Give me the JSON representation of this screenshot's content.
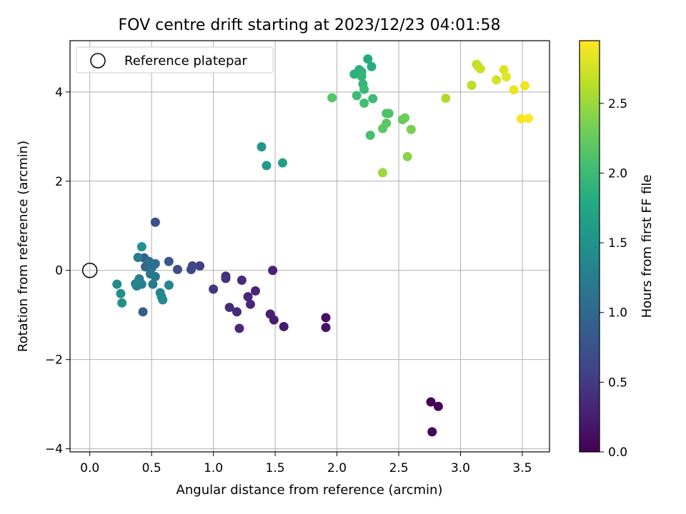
{
  "chart_data": {
    "type": "scatter",
    "title": "FOV centre drift starting at 2023/12/23 04:01:58",
    "xlabel": "Angular distance from reference (arcmin)",
    "ylabel": "Rotation from reference (arcmin)",
    "xlim": [
      -0.16,
      3.72
    ],
    "ylim": [
      -4.07,
      5.15
    ],
    "xticks": [
      0.0,
      0.5,
      1.0,
      1.5,
      2.0,
      2.5,
      3.0,
      3.5
    ],
    "xtick_labels": [
      "0.0",
      "0.5",
      "1.0",
      "1.5",
      "2.0",
      "2.5",
      "3.0",
      "3.5"
    ],
    "yticks": [
      -4,
      -2,
      0,
      2,
      4
    ],
    "ytick_labels": [
      "−4",
      "−2",
      "0",
      "2",
      "4"
    ],
    "grid": true,
    "legend": {
      "position": "top-left",
      "entries": [
        "Reference platepar"
      ]
    },
    "reference_point": {
      "x": 0.0,
      "y": 0.0,
      "label": "Reference platepar"
    },
    "colorbar": {
      "label": "Hours from first FF file",
      "colormap": "viridis",
      "range": [
        0.0,
        2.95
      ],
      "ticks": [
        0.0,
        0.5,
        1.0,
        1.5,
        2.0,
        2.5
      ],
      "tick_labels": [
        "0.0",
        "0.5",
        "1.0",
        "1.5",
        "2.0",
        "2.5"
      ]
    },
    "points": [
      {
        "x": 2.76,
        "y": -2.95,
        "c": 0.02
      },
      {
        "x": 2.82,
        "y": -3.05,
        "c": 0.03
      },
      {
        "x": 2.77,
        "y": -3.62,
        "c": 0.04
      },
      {
        "x": 1.91,
        "y": -1.06,
        "c": 0.12
      },
      {
        "x": 1.91,
        "y": -1.28,
        "c": 0.14
      },
      {
        "x": 1.57,
        "y": -1.26,
        "c": 0.22
      },
      {
        "x": 1.49,
        "y": -1.11,
        "c": 0.24
      },
      {
        "x": 1.46,
        "y": -0.98,
        "c": 0.26
      },
      {
        "x": 1.48,
        "y": 0.0,
        "c": 0.28
      },
      {
        "x": 1.34,
        "y": -0.46,
        "c": 0.3
      },
      {
        "x": 1.3,
        "y": -0.76,
        "c": 0.32
      },
      {
        "x": 1.28,
        "y": -0.59,
        "c": 0.33
      },
      {
        "x": 1.21,
        "y": -1.3,
        "c": 0.34
      },
      {
        "x": 1.19,
        "y": -0.93,
        "c": 0.36
      },
      {
        "x": 1.23,
        "y": -0.22,
        "c": 0.37
      },
      {
        "x": 1.13,
        "y": -0.83,
        "c": 0.38
      },
      {
        "x": 1.1,
        "y": -0.13,
        "c": 0.4
      },
      {
        "x": 1.1,
        "y": -0.18,
        "c": 0.42
      },
      {
        "x": 1.0,
        "y": -0.42,
        "c": 0.46
      },
      {
        "x": 0.89,
        "y": 0.1,
        "c": 0.55
      },
      {
        "x": 0.83,
        "y": 0.1,
        "c": 0.6
      },
      {
        "x": 0.82,
        "y": 0.02,
        "c": 0.65
      },
      {
        "x": 0.71,
        "y": 0.02,
        "c": 0.7
      },
      {
        "x": 0.53,
        "y": 1.08,
        "c": 0.72
      },
      {
        "x": 0.64,
        "y": 0.2,
        "c": 0.8
      },
      {
        "x": 0.43,
        "y": -0.93,
        "c": 0.85
      },
      {
        "x": 0.44,
        "y": 0.28,
        "c": 0.9
      },
      {
        "x": 0.45,
        "y": 0.08,
        "c": 0.95
      },
      {
        "x": 0.52,
        "y": 0.13,
        "c": 1.0
      },
      {
        "x": 0.53,
        "y": 0.15,
        "c": 1.05
      },
      {
        "x": 0.5,
        "y": 0.05,
        "c": 1.1
      },
      {
        "x": 0.48,
        "y": 0.2,
        "c": 1.1
      },
      {
        "x": 0.53,
        "y": -0.14,
        "c": 1.15
      },
      {
        "x": 0.49,
        "y": -0.08,
        "c": 1.18
      },
      {
        "x": 0.51,
        "y": -0.31,
        "c": 1.2
      },
      {
        "x": 0.39,
        "y": 0.29,
        "c": 1.22
      },
      {
        "x": 0.4,
        "y": -0.19,
        "c": 1.25
      },
      {
        "x": 0.42,
        "y": -0.31,
        "c": 1.28
      },
      {
        "x": 0.38,
        "y": -0.35,
        "c": 1.3
      },
      {
        "x": 0.37,
        "y": -0.3,
        "c": 1.32
      },
      {
        "x": 0.57,
        "y": -0.5,
        "c": 1.35
      },
      {
        "x": 0.64,
        "y": -0.33,
        "c": 1.35
      },
      {
        "x": 0.58,
        "y": -0.59,
        "c": 1.38
      },
      {
        "x": 0.59,
        "y": -0.66,
        "c": 1.4
      },
      {
        "x": 0.22,
        "y": -0.31,
        "c": 1.4
      },
      {
        "x": 0.25,
        "y": -0.52,
        "c": 1.45
      },
      {
        "x": 0.26,
        "y": -0.73,
        "c": 1.48
      },
      {
        "x": 0.42,
        "y": 0.53,
        "c": 1.5
      },
      {
        "x": 1.39,
        "y": 2.77,
        "c": 1.52
      },
      {
        "x": 1.43,
        "y": 2.35,
        "c": 1.6
      },
      {
        "x": 1.56,
        "y": 2.41,
        "c": 1.65
      },
      {
        "x": 2.25,
        "y": 4.74,
        "c": 1.8
      },
      {
        "x": 2.28,
        "y": 4.57,
        "c": 1.82
      },
      {
        "x": 2.18,
        "y": 4.5,
        "c": 1.85
      },
      {
        "x": 2.14,
        "y": 4.4,
        "c": 1.88
      },
      {
        "x": 2.2,
        "y": 4.45,
        "c": 1.9
      },
      {
        "x": 2.2,
        "y": 4.35,
        "c": 1.92
      },
      {
        "x": 2.21,
        "y": 4.18,
        "c": 1.95
      },
      {
        "x": 2.22,
        "y": 4.06,
        "c": 1.97
      },
      {
        "x": 2.16,
        "y": 3.92,
        "c": 2.0
      },
      {
        "x": 2.29,
        "y": 3.85,
        "c": 2.02
      },
      {
        "x": 2.22,
        "y": 3.75,
        "c": 2.05
      },
      {
        "x": 1.96,
        "y": 3.87,
        "c": 2.15
      },
      {
        "x": 2.4,
        "y": 3.52,
        "c": 2.1
      },
      {
        "x": 2.42,
        "y": 3.52,
        "c": 2.12
      },
      {
        "x": 2.4,
        "y": 3.3,
        "c": 2.18
      },
      {
        "x": 2.37,
        "y": 3.18,
        "c": 2.2
      },
      {
        "x": 2.27,
        "y": 3.03,
        "c": 2.08
      },
      {
        "x": 2.53,
        "y": 3.38,
        "c": 2.25
      },
      {
        "x": 2.55,
        "y": 3.42,
        "c": 2.28
      },
      {
        "x": 2.6,
        "y": 3.16,
        "c": 2.35
      },
      {
        "x": 2.57,
        "y": 2.55,
        "c": 2.42
      },
      {
        "x": 2.37,
        "y": 2.19,
        "c": 2.5
      },
      {
        "x": 2.88,
        "y": 3.86,
        "c": 2.6
      },
      {
        "x": 3.09,
        "y": 4.15,
        "c": 2.65
      },
      {
        "x": 3.13,
        "y": 4.62,
        "c": 2.68
      },
      {
        "x": 3.14,
        "y": 4.58,
        "c": 2.7
      },
      {
        "x": 3.16,
        "y": 4.52,
        "c": 2.72
      },
      {
        "x": 3.29,
        "y": 4.27,
        "c": 2.76
      },
      {
        "x": 3.35,
        "y": 4.5,
        "c": 2.8
      },
      {
        "x": 3.37,
        "y": 4.34,
        "c": 2.83
      },
      {
        "x": 3.43,
        "y": 4.05,
        "c": 2.86
      },
      {
        "x": 3.52,
        "y": 4.14,
        "c": 2.88
      },
      {
        "x": 3.49,
        "y": 3.4,
        "c": 2.92
      },
      {
        "x": 3.55,
        "y": 3.41,
        "c": 2.94
      }
    ]
  }
}
